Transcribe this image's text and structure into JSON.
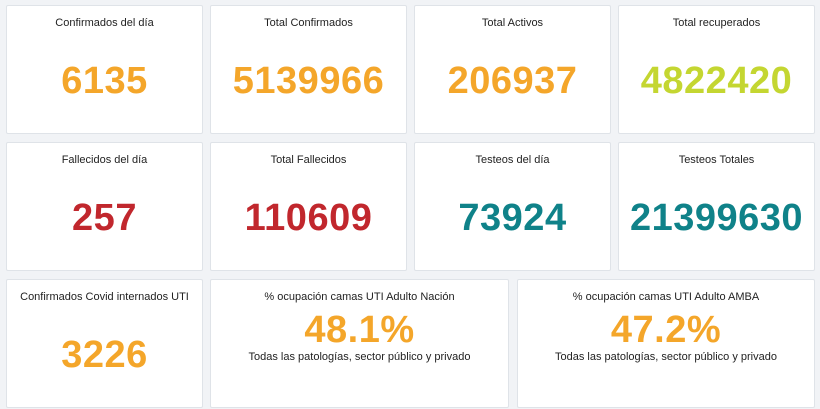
{
  "colors": {
    "orange": "#f4a62a",
    "lime": "#c4d631",
    "red": "#c1272d",
    "teal": "#0f8289"
  },
  "row1": [
    {
      "label": "Confirmados del día",
      "value": "6135"
    },
    {
      "label": "Total Confirmados",
      "value": "5139966"
    },
    {
      "label": "Total Activos",
      "value": "206937"
    },
    {
      "label": "Total recuperados",
      "value": "4822420"
    }
  ],
  "row2": [
    {
      "label": "Fallecidos del día",
      "value": "257"
    },
    {
      "label": "Total Fallecidos",
      "value": "110609"
    },
    {
      "label": "Testeos del día",
      "value": "73924"
    },
    {
      "label": "Testeos Totales",
      "value": "21399630"
    }
  ],
  "row3": [
    {
      "label": "Confirmados Covid internados UTI",
      "value": "3226"
    },
    {
      "label": "% ocupación camas UTI Adulto Nación",
      "value": "48.1%",
      "sub": "Todas las patologías, sector público y privado"
    },
    {
      "label": "% ocupación camas UTI Adulto AMBA",
      "value": "47.2%",
      "sub": "Todas las patologías, sector público y privado"
    }
  ]
}
